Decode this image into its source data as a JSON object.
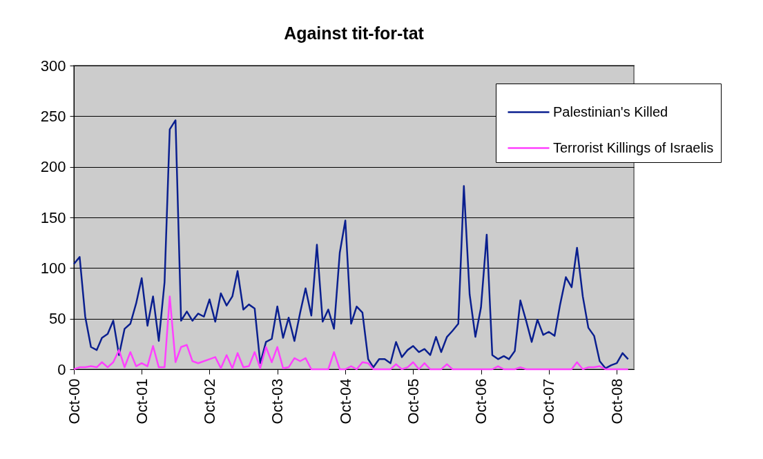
{
  "chart_data": {
    "type": "line",
    "title": "Against tit-for-tat",
    "x": [
      "2000-10",
      "2000-11",
      "2000-12",
      "2001-01",
      "2001-02",
      "2001-03",
      "2001-04",
      "2001-05",
      "2001-06",
      "2001-07",
      "2001-08",
      "2001-09",
      "2001-10",
      "2001-11",
      "2001-12",
      "2002-01",
      "2002-02",
      "2002-03",
      "2002-04",
      "2002-05",
      "2002-06",
      "2002-07",
      "2002-08",
      "2002-09",
      "2002-10",
      "2002-11",
      "2002-12",
      "2003-01",
      "2003-02",
      "2003-03",
      "2003-04",
      "2003-05",
      "2003-06",
      "2003-07",
      "2003-08",
      "2003-09",
      "2003-10",
      "2003-11",
      "2003-12",
      "2004-01",
      "2004-02",
      "2004-03",
      "2004-04",
      "2004-05",
      "2004-06",
      "2004-07",
      "2004-08",
      "2004-09",
      "2004-10",
      "2004-11",
      "2004-12",
      "2005-01",
      "2005-02",
      "2005-03",
      "2005-04",
      "2005-05",
      "2005-06",
      "2005-07",
      "2005-08",
      "2005-09",
      "2005-10",
      "2005-11",
      "2005-12",
      "2006-01",
      "2006-02",
      "2006-03",
      "2006-04",
      "2006-05",
      "2006-06",
      "2006-07",
      "2006-08",
      "2006-09",
      "2006-10",
      "2006-11",
      "2006-12",
      "2007-01",
      "2007-02",
      "2007-03",
      "2007-04",
      "2007-05",
      "2007-06",
      "2007-07",
      "2007-08",
      "2007-09",
      "2007-10",
      "2007-11",
      "2007-12",
      "2008-01",
      "2008-02",
      "2008-03",
      "2008-04",
      "2008-05",
      "2008-06",
      "2008-07",
      "2008-08",
      "2008-09",
      "2008-10",
      "2008-11",
      "2008-12"
    ],
    "series": [
      {
        "name": "Palestinian's Killed",
        "color": "#0a1f8f",
        "values": [
          104,
          111,
          52,
          22,
          19,
          31,
          35,
          48,
          14,
          40,
          45,
          65,
          90,
          43,
          72,
          28,
          86,
          237,
          246,
          48,
          57,
          48,
          55,
          52,
          69,
          47,
          75,
          63,
          72,
          97,
          59,
          64,
          60,
          6,
          27,
          30,
          62,
          31,
          51,
          28,
          56,
          80,
          53,
          123,
          47,
          59,
          40,
          115,
          147,
          45,
          62,
          56,
          10,
          2,
          10,
          10,
          6,
          27,
          12,
          19,
          23,
          17,
          20,
          14,
          32,
          17,
          32,
          38,
          45,
          181,
          74,
          32,
          61,
          133,
          14,
          10,
          13,
          10,
          18,
          68,
          48,
          27,
          49,
          34,
          37,
          33,
          64,
          91,
          81,
          120,
          72,
          41,
          33,
          8,
          1,
          4,
          6,
          16,
          10
        ]
      },
      {
        "name": "Terrorist Killings of Israelis",
        "color": "#ff40ff",
        "values": [
          0,
          2,
          2,
          3,
          2,
          7,
          2,
          7,
          19,
          2,
          17,
          3,
          6,
          3,
          23,
          2,
          2,
          72,
          7,
          22,
          24,
          8,
          6,
          8,
          10,
          12,
          1,
          14,
          1,
          16,
          2,
          3,
          17,
          1,
          22,
          7,
          22,
          1,
          2,
          11,
          8,
          11,
          0,
          0,
          0,
          0,
          17,
          0,
          0,
          3,
          0,
          7,
          6,
          0,
          0,
          0,
          0,
          5,
          0,
          2,
          7,
          0,
          6,
          0,
          0,
          0,
          5,
          0,
          0,
          0,
          0,
          0,
          0,
          0,
          0,
          3,
          0,
          0,
          0,
          2,
          0,
          0,
          0,
          0,
          0,
          0,
          0,
          0,
          0,
          7,
          0,
          2,
          2,
          3,
          0,
          0,
          0,
          0,
          0
        ]
      }
    ],
    "xlim": [
      "2000-10",
      "2009-01"
    ],
    "xticks": [
      {
        "value": "2000-10",
        "label": "Oct-00"
      },
      {
        "value": "2001-10",
        "label": "Oct-01"
      },
      {
        "value": "2002-10",
        "label": "Oct-02"
      },
      {
        "value": "2003-10",
        "label": "Oct-03"
      },
      {
        "value": "2004-10",
        "label": "Oct-04"
      },
      {
        "value": "2005-10",
        "label": "Oct-05"
      },
      {
        "value": "2006-10",
        "label": "Oct-06"
      },
      {
        "value": "2007-10",
        "label": "Oct-07"
      },
      {
        "value": "2008-10",
        "label": "Oct-08"
      }
    ],
    "ylim": [
      0,
      300
    ],
    "yticks": [
      0,
      50,
      100,
      150,
      200,
      250,
      300
    ],
    "grid": "y",
    "legend": "top right",
    "marker": "none",
    "line_style": "solid"
  }
}
